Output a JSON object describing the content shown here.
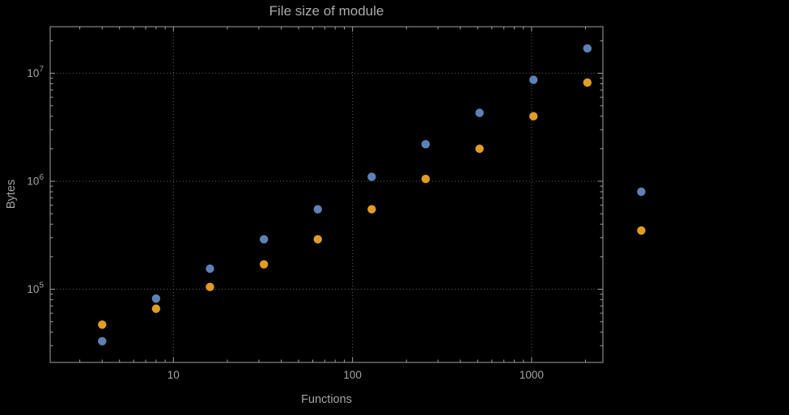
{
  "chart_data": {
    "type": "scatter",
    "title": "File size of module",
    "xlabel": "Functions",
    "ylabel": "Bytes",
    "x_scale": "log",
    "y_scale": "log",
    "grid": true,
    "legend_position": "none",
    "xlim": [
      2.05,
      2500
    ],
    "ylim": [
      21000,
      27000000
    ],
    "x_ticks": [
      10,
      100,
      1000
    ],
    "x_tick_labels": [
      "10",
      "100",
      "1000"
    ],
    "y_ticks": [
      100000,
      1000000,
      10000000
    ],
    "y_tick_labels": [
      "10^5",
      "10^6",
      "10^7"
    ],
    "x": [
      4,
      8,
      16,
      32,
      64,
      128,
      256,
      512,
      1024,
      2048,
      4096
    ],
    "series": [
      {
        "name": "blue",
        "color": "#5e81b5",
        "values": [
          33000,
          82000,
          155000,
          290000,
          550000,
          1100000,
          2200000,
          4300000,
          8700000,
          17000000,
          800000
        ]
      },
      {
        "name": "orange",
        "color": "#e19c24",
        "values": [
          47000,
          66000,
          105000,
          170000,
          290000,
          550000,
          1050000,
          2000000,
          4000000,
          8200000,
          350000
        ]
      }
    ]
  },
  "colors": {
    "background": "#000000",
    "frame": "#a0a0a0",
    "grid": "#5e5e5e",
    "tick_text": "#a3a3a3",
    "title_text": "#ababab"
  }
}
